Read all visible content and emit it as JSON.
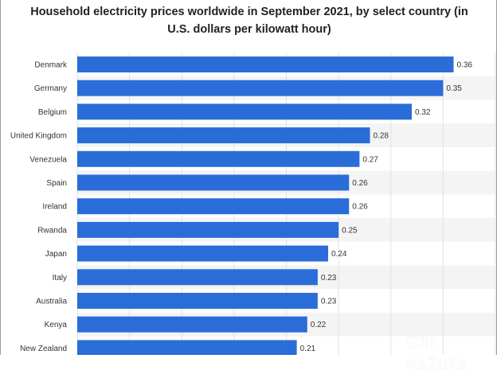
{
  "chart_data": {
    "type": "bar",
    "orientation": "horizontal",
    "title": "Household electricity prices worldwide in September 2021, by select country (in U.S. dollars per kilowatt hour)",
    "categories": [
      "Denmark",
      "Germany",
      "Belgium",
      "United Kingdom",
      "Venezuela",
      "Spain",
      "Ireland",
      "Rwanda",
      "Japan",
      "Italy",
      "Australia",
      "Kenya",
      "New Zealand"
    ],
    "values": [
      0.36,
      0.35,
      0.32,
      0.28,
      0.27,
      0.26,
      0.26,
      0.25,
      0.24,
      0.23,
      0.23,
      0.22,
      0.21
    ],
    "value_labels": [
      "0.36",
      "0.35",
      "0.32",
      "0.28",
      "0.27",
      "0.26",
      "0.26",
      "0.25",
      "0.24",
      "0.23",
      "0.23",
      "0.22",
      "0.21"
    ],
    "xlim": [
      0,
      0.4
    ],
    "grid": true,
    "colors": {
      "bar": "#2a6dd9",
      "band": "#f4f4f4",
      "grid": "#e2e2e2"
    }
  },
  "watermark": "Chi na2uka"
}
